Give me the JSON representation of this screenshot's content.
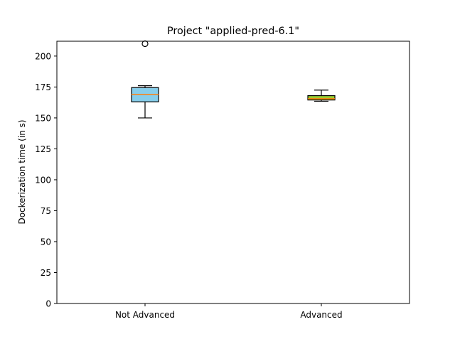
{
  "chart_data": {
    "type": "box",
    "title": "Project \"applied-pred-6.1\"",
    "xlabel": "",
    "ylabel": "Dockerization time (in s)",
    "ylim": [
      0,
      212
    ],
    "yticks": [
      0,
      25,
      50,
      75,
      100,
      125,
      150,
      175,
      200
    ],
    "grid": false,
    "categories": [
      "Not Advanced",
      "Advanced"
    ],
    "boxes": [
      {
        "category": "Not Advanced",
        "whisker_low": 150,
        "q1": 163,
        "median": 169,
        "q3": 174.5,
        "whisker_high": 176,
        "outliers": [
          210
        ],
        "fill": "#87ceeb"
      },
      {
        "category": "Advanced",
        "whisker_low": 163.5,
        "q1": 164.5,
        "median": 165.5,
        "q3": 168,
        "whisker_high": 172.5,
        "outliers": [],
        "fill": "#9acd32"
      }
    ],
    "median_color": "#ff7f0e"
  }
}
